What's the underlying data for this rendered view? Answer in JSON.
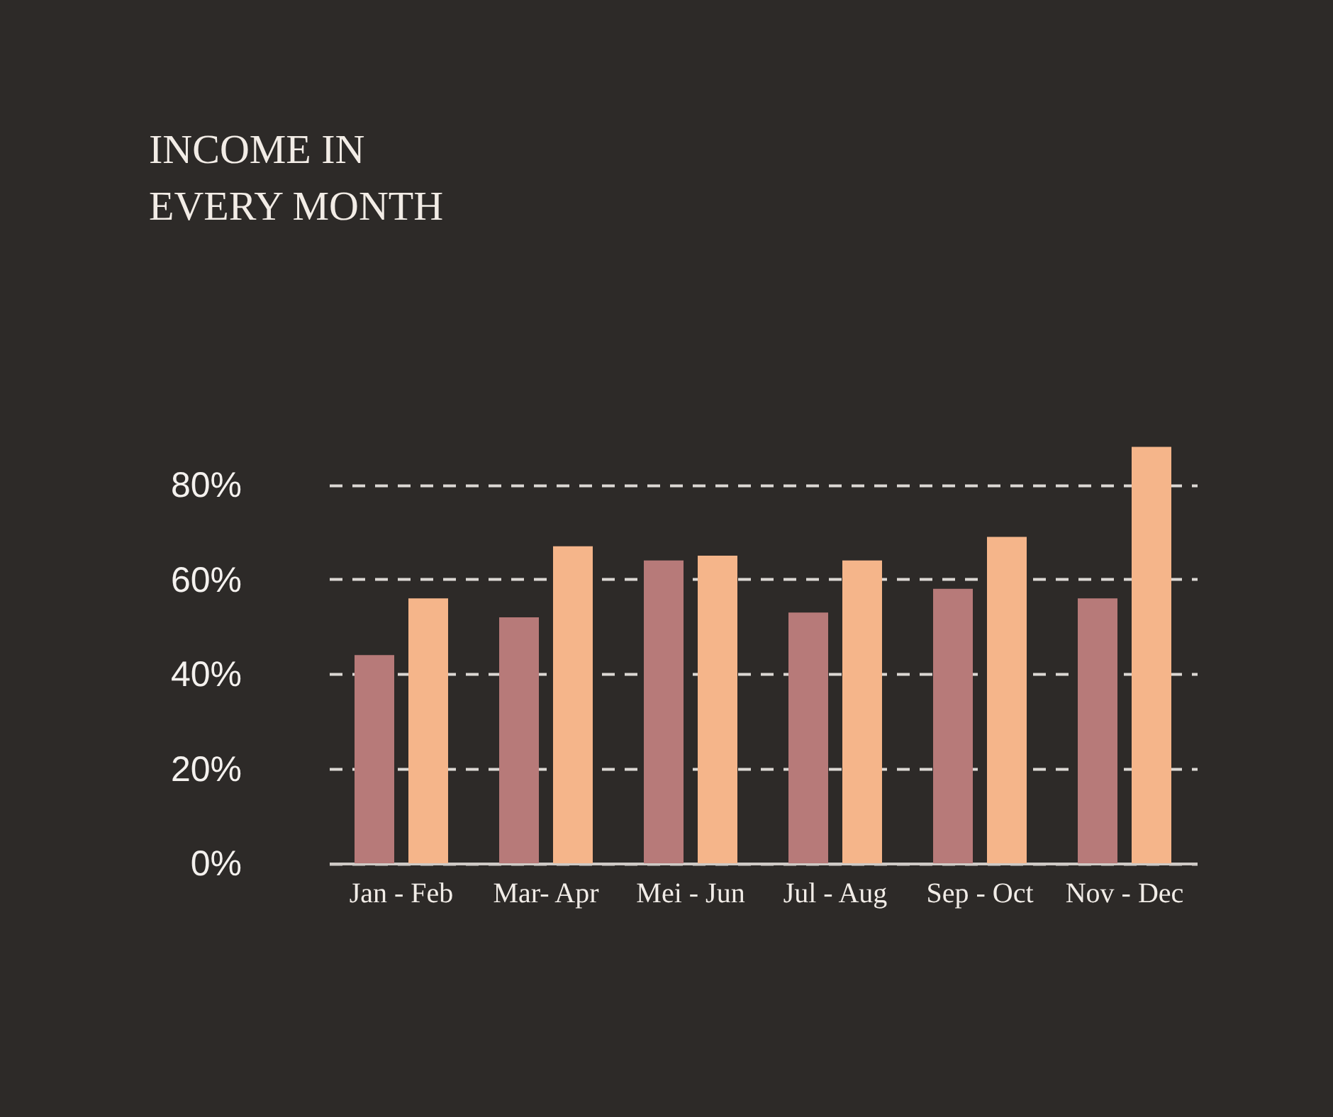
{
  "chart_data": {
    "type": "bar",
    "title": "INCOME IN\nEVERY MONTH",
    "categories": [
      "Jan - Feb",
      "Mar- Apr",
      "Mei - Jun",
      "Jul - Aug",
      "Sep - Oct",
      "Nov - Dec"
    ],
    "series": [
      {
        "color": "#b77a79",
        "values": [
          44,
          52,
          64,
          53,
          58,
          56
        ]
      },
      {
        "color": "#f5b58a",
        "values": [
          56,
          67,
          65,
          64,
          69,
          88
        ]
      }
    ],
    "ylim": [
      0,
      88
    ],
    "yticks": [
      {
        "value": 0,
        "label": "0%"
      },
      {
        "value": 20,
        "label": "20%"
      },
      {
        "value": 40,
        "label": "40%"
      },
      {
        "value": 60,
        "label": "60%"
      },
      {
        "value": 80,
        "label": "80%"
      }
    ],
    "grid": "y"
  }
}
